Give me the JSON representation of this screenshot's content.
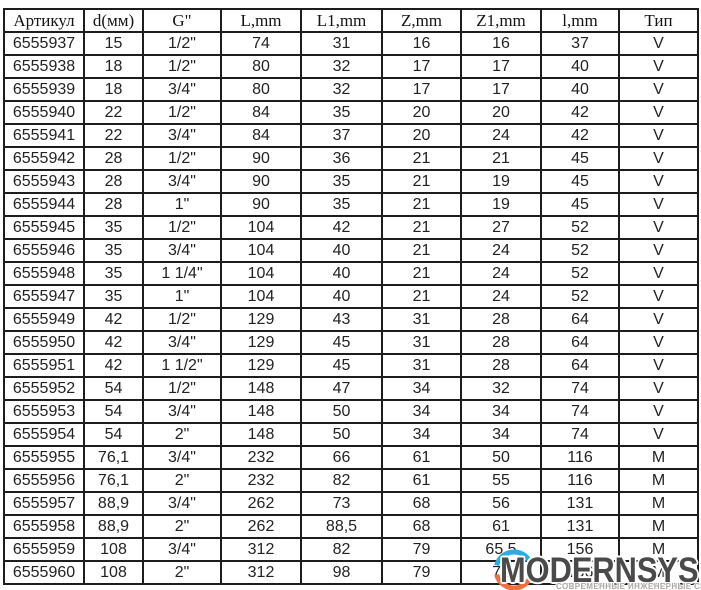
{
  "table": {
    "columns": [
      "Артикул",
      "d(мм)",
      "G\"",
      "L,mm",
      "L1,mm",
      "Z,mm",
      "Z1,mm",
      "l,mm",
      "Тип"
    ],
    "rows": [
      [
        "6555937",
        "15",
        "1/2\"",
        "74",
        "31",
        "16",
        "16",
        "37",
        "V"
      ],
      [
        "6555938",
        "18",
        "1/2\"",
        "80",
        "32",
        "17",
        "17",
        "40",
        "V"
      ],
      [
        "6555939",
        "18",
        "3/4\"",
        "80",
        "32",
        "17",
        "17",
        "40",
        "V"
      ],
      [
        "6555940",
        "22",
        "1/2\"",
        "84",
        "35",
        "20",
        "20",
        "42",
        "V"
      ],
      [
        "6555941",
        "22",
        "3/4\"",
        "84",
        "37",
        "20",
        "24",
        "42",
        "V"
      ],
      [
        "6555942",
        "28",
        "1/2\"",
        "90",
        "36",
        "21",
        "21",
        "45",
        "V"
      ],
      [
        "6555943",
        "28",
        "3/4\"",
        "90",
        "35",
        "21",
        "19",
        "45",
        "V"
      ],
      [
        "6555944",
        "28",
        "1\"",
        "90",
        "35",
        "21",
        "19",
        "45",
        "V"
      ],
      [
        "6555945",
        "35",
        "1/2\"",
        "104",
        "42",
        "21",
        "27",
        "52",
        "V"
      ],
      [
        "6555946",
        "35",
        "3/4\"",
        "104",
        "40",
        "21",
        "24",
        "52",
        "V"
      ],
      [
        "6555948",
        "35",
        "1 1/4\"",
        "104",
        "40",
        "21",
        "24",
        "52",
        "V"
      ],
      [
        "6555947",
        "35",
        "1\"",
        "104",
        "40",
        "21",
        "24",
        "52",
        "V"
      ],
      [
        "6555949",
        "42",
        "1/2\"",
        "129",
        "43",
        "31",
        "28",
        "64",
        "V"
      ],
      [
        "6555950",
        "42",
        "3/4\"",
        "129",
        "45",
        "31",
        "28",
        "64",
        "V"
      ],
      [
        "6555951",
        "42",
        "1 1/2\"",
        "129",
        "45",
        "31",
        "28",
        "64",
        "V"
      ],
      [
        "6555952",
        "54",
        "1/2\"",
        "148",
        "47",
        "34",
        "32",
        "74",
        "V"
      ],
      [
        "6555953",
        "54",
        "3/4\"",
        "148",
        "50",
        "34",
        "34",
        "74",
        "V"
      ],
      [
        "6555954",
        "54",
        "2\"",
        "148",
        "50",
        "34",
        "34",
        "74",
        "V"
      ],
      [
        "6555955",
        "76,1",
        "3/4\"",
        "232",
        "66",
        "61",
        "50",
        "116",
        "M"
      ],
      [
        "6555956",
        "76,1",
        "2\"",
        "232",
        "82",
        "61",
        "55",
        "116",
        "M"
      ],
      [
        "6555957",
        "88,9",
        "3/4\"",
        "262",
        "73",
        "68",
        "56",
        "131",
        "M"
      ],
      [
        "6555958",
        "88,9",
        "2\"",
        "262",
        "88,5",
        "68",
        "61",
        "131",
        "M"
      ],
      [
        "6555959",
        "108",
        "3/4\"",
        "312",
        "82",
        "79",
        "65,5",
        "156",
        "M"
      ],
      [
        "6555960",
        "108",
        "2\"",
        "312",
        "98",
        "79",
        "71",
        "156",
        "M"
      ]
    ]
  },
  "watermark": {
    "brand": "MODERNSYS",
    "tagline": "СОВРЕМЕННЫЕ ИНЖЕНЕРНЫЕ СИСТЕМЫ",
    "colors": {
      "blue_arc": "#2aabe2",
      "orange_arc": "#f2703f",
      "brand_text": "#4a4a4b",
      "tagline_text": "#aba8a4"
    }
  }
}
